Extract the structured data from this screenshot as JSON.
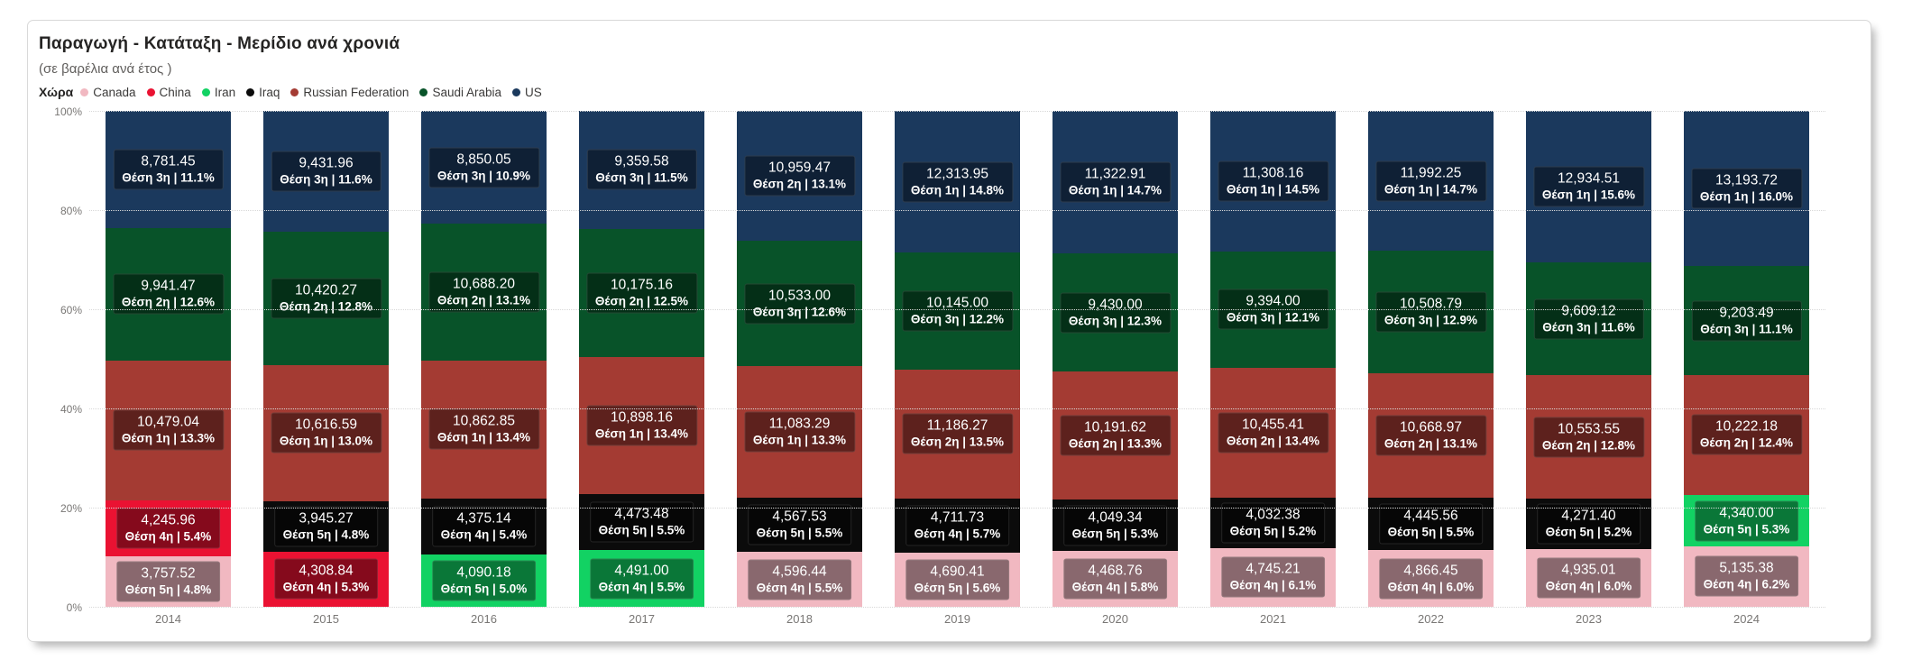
{
  "card": {
    "title": "Παραγωγή - Κατάταξη - Μερίδιο ανά χρονιά",
    "subtitle": "(σε βαρέλια ανά έτος )",
    "legend_title": "Χώρα"
  },
  "colors": {
    "Canada": "#F1B8C1",
    "China": "#EA1232",
    "Iran": "#12D263",
    "Iraq": "#0B0B0B",
    "Russian Federation": "#A43B33",
    "Saudi Arabia": "#085329",
    "US": "#1B395D"
  },
  "legend": [
    "Canada",
    "China",
    "Iran",
    "Iraq",
    "Russian Federation",
    "Saudi Arabia",
    "US"
  ],
  "y_axis": {
    "tick_labels_top_to_bottom": [
      "100%",
      "80%",
      "60%",
      "40%",
      "20%",
      "0%"
    ]
  },
  "chart_data": {
    "type": "bar",
    "subtype": "100%-stacked-column",
    "stack_order_bottom_to_top": "alphabetical",
    "title": "Παραγωγή - Κατάταξη - Μερίδιο ανά χρονιά",
    "subtitle": "(σε βαρέλια ανά έτος )",
    "xlabel": "",
    "ylabel": "",
    "ylim_percent": [
      0,
      100
    ],
    "grid": "horizontal-dotted",
    "legend_position": "top",
    "categories": [
      "2014",
      "2015",
      "2016",
      "2017",
      "2018",
      "2019",
      "2020",
      "2021",
      "2022",
      "2023",
      "2024"
    ],
    "years": [
      {
        "year": "2014",
        "segments": [
          {
            "country": "Canada",
            "value": 3757.52,
            "value_label": "3,757.52",
            "rank_label": "Θέση 5η | 4.8%"
          },
          {
            "country": "China",
            "value": 4245.96,
            "value_label": "4,245.96",
            "rank_label": "Θέση 4η | 5.4%"
          },
          {
            "country": "Russian Federation",
            "value": 10479.04,
            "value_label": "10,479.04",
            "rank_label": "Θέση 1η | 13.3%"
          },
          {
            "country": "Saudi Arabia",
            "value": 9941.47,
            "value_label": "9,941.47",
            "rank_label": "Θέση 2η | 12.6%"
          },
          {
            "country": "US",
            "value": 8781.45,
            "value_label": "8,781.45",
            "rank_label": "Θέση 3η | 11.1%"
          }
        ]
      },
      {
        "year": "2015",
        "segments": [
          {
            "country": "China",
            "value": 4308.84,
            "value_label": "4,308.84",
            "rank_label": "Θέση 4η | 5.3%"
          },
          {
            "country": "Iraq",
            "value": 3945.27,
            "value_label": "3,945.27",
            "rank_label": "Θέση 5η | 4.8%"
          },
          {
            "country": "Russian Federation",
            "value": 10616.59,
            "value_label": "10,616.59",
            "rank_label": "Θέση 1η | 13.0%"
          },
          {
            "country": "Saudi Arabia",
            "value": 10420.27,
            "value_label": "10,420.27",
            "rank_label": "Θέση 2η | 12.8%"
          },
          {
            "country": "US",
            "value": 9431.96,
            "value_label": "9,431.96",
            "rank_label": "Θέση 3η | 11.6%"
          }
        ]
      },
      {
        "year": "2016",
        "segments": [
          {
            "country": "Iran",
            "value": 4090.18,
            "value_label": "4,090.18",
            "rank_label": "Θέση 5η | 5.0%"
          },
          {
            "country": "Iraq",
            "value": 4375.14,
            "value_label": "4,375.14",
            "rank_label": "Θέση 4η | 5.4%"
          },
          {
            "country": "Russian Federation",
            "value": 10862.85,
            "value_label": "10,862.85",
            "rank_label": "Θέση 1η | 13.4%"
          },
          {
            "country": "Saudi Arabia",
            "value": 10688.2,
            "value_label": "10,688.20",
            "rank_label": "Θέση 2η | 13.1%"
          },
          {
            "country": "US",
            "value": 8850.05,
            "value_label": "8,850.05",
            "rank_label": "Θέση 3η | 10.9%"
          }
        ]
      },
      {
        "year": "2017",
        "segments": [
          {
            "country": "Iran",
            "value": 4491.0,
            "value_label": "4,491.00",
            "rank_label": "Θέση 4η | 5.5%"
          },
          {
            "country": "Iraq",
            "value": 4473.48,
            "value_label": "4,473.48",
            "rank_label": "Θέση 5η | 5.5%"
          },
          {
            "country": "Russian Federation",
            "value": 10898.16,
            "value_label": "10,898.16",
            "rank_label": "Θέση 1η | 13.4%"
          },
          {
            "country": "Saudi Arabia",
            "value": 10175.16,
            "value_label": "10,175.16",
            "rank_label": "Θέση 2η | 12.5%"
          },
          {
            "country": "US",
            "value": 9359.58,
            "value_label": "9,359.58",
            "rank_label": "Θέση 3η | 11.5%"
          }
        ]
      },
      {
        "year": "2018",
        "segments": [
          {
            "country": "Canada",
            "value": 4596.44,
            "value_label": "4,596.44",
            "rank_label": "Θέση 4η | 5.5%"
          },
          {
            "country": "Iraq",
            "value": 4567.53,
            "value_label": "4,567.53",
            "rank_label": "Θέση 5η | 5.5%"
          },
          {
            "country": "Russian Federation",
            "value": 11083.29,
            "value_label": "11,083.29",
            "rank_label": "Θέση 1η | 13.3%"
          },
          {
            "country": "Saudi Arabia",
            "value": 10533.0,
            "value_label": "10,533.00",
            "rank_label": "Θέση 3η | 12.6%"
          },
          {
            "country": "US",
            "value": 10959.47,
            "value_label": "10,959.47",
            "rank_label": "Θέση 2η | 13.1%"
          }
        ]
      },
      {
        "year": "2019",
        "segments": [
          {
            "country": "Canada",
            "value": 4690.41,
            "value_label": "4,690.41",
            "rank_label": "Θέση 5η | 5.6%"
          },
          {
            "country": "Iraq",
            "value": 4711.73,
            "value_label": "4,711.73",
            "rank_label": "Θέση 4η | 5.7%"
          },
          {
            "country": "Russian Federation",
            "value": 11186.27,
            "value_label": "11,186.27",
            "rank_label": "Θέση 2η | 13.5%"
          },
          {
            "country": "Saudi Arabia",
            "value": 10145.0,
            "value_label": "10,145.00",
            "rank_label": "Θέση 3η | 12.2%"
          },
          {
            "country": "US",
            "value": 12313.95,
            "value_label": "12,313.95",
            "rank_label": "Θέση 1η | 14.8%"
          }
        ]
      },
      {
        "year": "2020",
        "segments": [
          {
            "country": "Canada",
            "value": 4468.76,
            "value_label": "4,468.76",
            "rank_label": "Θέση 4η | 5.8%"
          },
          {
            "country": "Iraq",
            "value": 4049.34,
            "value_label": "4,049.34",
            "rank_label": "Θέση 5η | 5.3%"
          },
          {
            "country": "Russian Federation",
            "value": 10191.62,
            "value_label": "10,191.62",
            "rank_label": "Θέση 2η | 13.3%"
          },
          {
            "country": "Saudi Arabia",
            "value": 9430.0,
            "value_label": "9,430.00",
            "rank_label": "Θέση 3η | 12.3%"
          },
          {
            "country": "US",
            "value": 11322.91,
            "value_label": "11,322.91",
            "rank_label": "Θέση 1η | 14.7%"
          }
        ]
      },
      {
        "year": "2021",
        "segments": [
          {
            "country": "Canada",
            "value": 4745.21,
            "value_label": "4,745.21",
            "rank_label": "Θέση 4η | 6.1%"
          },
          {
            "country": "Iraq",
            "value": 4032.38,
            "value_label": "4,032.38",
            "rank_label": "Θέση 5η | 5.2%"
          },
          {
            "country": "Russian Federation",
            "value": 10455.41,
            "value_label": "10,455.41",
            "rank_label": "Θέση 2η | 13.4%"
          },
          {
            "country": "Saudi Arabia",
            "value": 9394.0,
            "value_label": "9,394.00",
            "rank_label": "Θέση 3η | 12.1%"
          },
          {
            "country": "US",
            "value": 11308.16,
            "value_label": "11,308.16",
            "rank_label": "Θέση 1η | 14.5%"
          }
        ]
      },
      {
        "year": "2022",
        "segments": [
          {
            "country": "Canada",
            "value": 4866.45,
            "value_label": "4,866.45",
            "rank_label": "Θέση 4η | 6.0%"
          },
          {
            "country": "Iraq",
            "value": 4445.56,
            "value_label": "4,445.56",
            "rank_label": "Θέση 5η | 5.5%"
          },
          {
            "country": "Russian Federation",
            "value": 10668.97,
            "value_label": "10,668.97",
            "rank_label": "Θέση 2η | 13.1%"
          },
          {
            "country": "Saudi Arabia",
            "value": 10508.79,
            "value_label": "10,508.79",
            "rank_label": "Θέση 3η | 12.9%"
          },
          {
            "country": "US",
            "value": 11992.25,
            "value_label": "11,992.25",
            "rank_label": "Θέση 1η | 14.7%"
          }
        ]
      },
      {
        "year": "2023",
        "segments": [
          {
            "country": "Canada",
            "value": 4935.01,
            "value_label": "4,935.01",
            "rank_label": "Θέση 4η | 6.0%"
          },
          {
            "country": "Iraq",
            "value": 4271.4,
            "value_label": "4,271.40",
            "rank_label": "Θέση 5η | 5.2%"
          },
          {
            "country": "Russian Federation",
            "value": 10553.55,
            "value_label": "10,553.55",
            "rank_label": "Θέση 2η | 12.8%"
          },
          {
            "country": "Saudi Arabia",
            "value": 9609.12,
            "value_label": "9,609.12",
            "rank_label": "Θέση 3η | 11.6%"
          },
          {
            "country": "US",
            "value": 12934.51,
            "value_label": "12,934.51",
            "rank_label": "Θέση 1η | 15.6%"
          }
        ]
      },
      {
        "year": "2024",
        "segments": [
          {
            "country": "Canada",
            "value": 5135.38,
            "value_label": "5,135.38",
            "rank_label": "Θέση 4η | 6.2%"
          },
          {
            "country": "Iran",
            "value": 4340.0,
            "value_label": "4,340.00",
            "rank_label": "Θέση 5η | 5.3%"
          },
          {
            "country": "Russian Federation",
            "value": 10222.18,
            "value_label": "10,222.18",
            "rank_label": "Θέση 2η | 12.4%"
          },
          {
            "country": "Saudi Arabia",
            "value": 9203.49,
            "value_label": "9,203.49",
            "rank_label": "Θέση 3η | 11.1%"
          },
          {
            "country": "US",
            "value": 13193.72,
            "value_label": "13,193.72",
            "rank_label": "Θέση 1η | 16.0%"
          }
        ]
      }
    ]
  }
}
